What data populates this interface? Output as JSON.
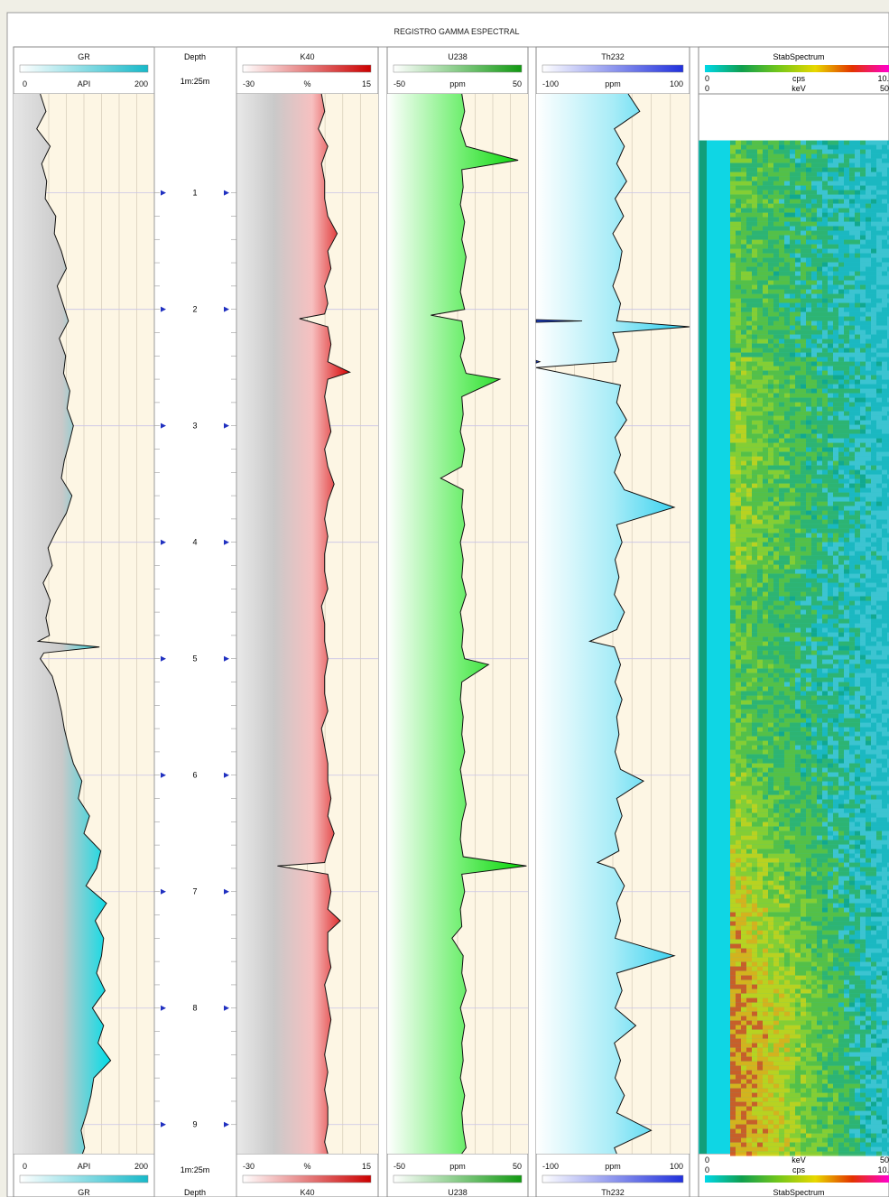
{
  "title": "REGISTRO GAMMA ESPECTRAL",
  "depth_track": {
    "header": "Depth",
    "scale": "1m:25m",
    "footer": "Depth",
    "ticks": [
      "1",
      "2",
      "3",
      "4",
      "5",
      "6",
      "7",
      "8",
      "9"
    ]
  },
  "colors": {
    "panel": "#fdf6e4",
    "grid": "#d9d0bb",
    "frame": "#8a8a8a",
    "curve": "#111111",
    "depth_marker": "#2030c0"
  },
  "chart_data": {
    "type": "line",
    "y_axis": {
      "label": "Depth",
      "range": [
        0.15,
        9.25
      ],
      "unit": "m",
      "orientation": "down"
    },
    "tracks": [
      {
        "id": "gr",
        "header": "GR",
        "footer": "GR",
        "unit": "API",
        "min": "0",
        "max": "200",
        "xlim": [
          0,
          200
        ],
        "scale_gradient": [
          "#ffffff",
          "#17b9c9"
        ],
        "fill_gradient": [
          "#e6e6e6",
          "#c9c9c9",
          "#00dde8"
        ],
        "depth": [
          0.15,
          0.3,
          0.45,
          0.6,
          0.75,
          0.9,
          1.05,
          1.2,
          1.35,
          1.5,
          1.65,
          1.8,
          1.95,
          2.1,
          2.25,
          2.4,
          2.55,
          2.7,
          2.85,
          3.0,
          3.15,
          3.3,
          3.45,
          3.6,
          3.75,
          3.9,
          4.05,
          4.2,
          4.35,
          4.5,
          4.65,
          4.8,
          4.85,
          4.9,
          4.95,
          5.0,
          5.15,
          5.3,
          5.45,
          5.6,
          5.75,
          5.9,
          6.05,
          6.2,
          6.35,
          6.5,
          6.65,
          6.8,
          6.95,
          7.1,
          7.25,
          7.4,
          7.55,
          7.7,
          7.85,
          8.0,
          8.15,
          8.3,
          8.45,
          8.6,
          8.75,
          8.9,
          9.05,
          9.2,
          9.25
        ],
        "value": [
          38,
          46,
          33,
          52,
          40,
          47,
          45,
          60,
          58,
          68,
          75,
          62,
          70,
          78,
          65,
          74,
          71,
          80,
          76,
          85,
          79,
          72,
          68,
          83,
          75,
          61,
          49,
          55,
          42,
          52,
          46,
          51,
          35,
          122,
          43,
          38,
          55,
          62,
          68,
          72,
          78,
          85,
          97,
          92,
          108,
          100,
          124,
          118,
          103,
          132,
          116,
          128,
          125,
          118,
          130,
          112,
          128,
          120,
          138,
          114,
          110,
          104,
          96,
          101,
          98
        ]
      },
      {
        "id": "k40",
        "header": "K40",
        "footer": "K40",
        "unit": "%",
        "min": "-30",
        "max": "15",
        "xlim": [
          -30,
          15
        ],
        "scale_gradient": [
          "#ffffff",
          "#cc0000"
        ],
        "fill_gradient": [
          "#e9e9e9",
          "#c9c9c9",
          "#f7c0c0",
          "#d80000"
        ],
        "depth": [
          0.15,
          0.3,
          0.45,
          0.6,
          0.75,
          0.9,
          1.05,
          1.2,
          1.35,
          1.5,
          1.65,
          1.8,
          1.95,
          2.04,
          2.08,
          2.15,
          2.3,
          2.45,
          2.54,
          2.6,
          2.75,
          2.9,
          3.05,
          3.2,
          3.35,
          3.5,
          3.65,
          3.8,
          3.95,
          4.1,
          4.25,
          4.4,
          4.55,
          4.7,
          4.85,
          5.0,
          5.15,
          5.3,
          5.45,
          5.6,
          5.75,
          5.9,
          6.05,
          6.2,
          6.35,
          6.5,
          6.65,
          6.75,
          6.78,
          6.85,
          7.0,
          7.15,
          7.25,
          7.35,
          7.5,
          7.65,
          7.8,
          7.95,
          8.1,
          8.25,
          8.4,
          8.55,
          8.7,
          8.85,
          9.0,
          9.15,
          9.25
        ],
        "value": [
          -3,
          -2,
          -4,
          -1,
          -3,
          -2,
          -2,
          -1,
          2,
          -1,
          0,
          -2,
          -1,
          -2,
          -10,
          -1,
          0,
          -1,
          6,
          -1,
          -2,
          -1,
          0,
          -2,
          -1,
          1,
          -1,
          -2,
          -1,
          -2,
          -2,
          -1,
          -3,
          -2,
          -2,
          -1,
          -2,
          -2,
          -1,
          -3,
          -2,
          -1,
          -1,
          0,
          -1,
          1,
          -1,
          -2,
          -17,
          -1,
          0,
          -1,
          3,
          -1,
          -1,
          0,
          -2,
          -1,
          0,
          -1,
          -2,
          -1,
          -2,
          -1,
          -1,
          -2,
          -1
        ]
      },
      {
        "id": "u238",
        "header": "U238",
        "footer": "U238",
        "unit": "ppm",
        "min": "-50",
        "max": "50",
        "xlim": [
          -50,
          50
        ],
        "scale_gradient": [
          "#ffffff",
          "#119911"
        ],
        "fill_gradient": [
          "#ffffff",
          "#7af07a",
          "#00d400"
        ],
        "depth": [
          0.15,
          0.3,
          0.45,
          0.6,
          0.72,
          0.8,
          0.95,
          1.1,
          1.25,
          1.4,
          1.55,
          1.7,
          1.85,
          2.0,
          2.05,
          2.1,
          2.25,
          2.4,
          2.55,
          2.6,
          2.75,
          2.9,
          3.05,
          3.2,
          3.35,
          3.45,
          3.55,
          3.7,
          3.85,
          4.0,
          4.15,
          4.3,
          4.45,
          4.6,
          4.75,
          4.9,
          5.0,
          5.05,
          5.2,
          5.35,
          5.5,
          5.65,
          5.8,
          5.95,
          6.1,
          6.25,
          6.4,
          6.55,
          6.7,
          6.78,
          6.85,
          7.0,
          7.15,
          7.3,
          7.4,
          7.55,
          7.7,
          7.85,
          8.0,
          8.15,
          8.3,
          8.45,
          8.6,
          8.75,
          8.9,
          9.05,
          9.2,
          9.25
        ],
        "value": [
          3,
          5,
          2,
          6,
          43,
          3,
          4,
          2,
          5,
          3,
          6,
          4,
          2,
          5,
          -19,
          3,
          5,
          2,
          6,
          30,
          3,
          4,
          2,
          5,
          3,
          -12,
          4,
          3,
          5,
          2,
          4,
          3,
          6,
          2,
          4,
          3,
          5,
          22,
          3,
          2,
          4,
          3,
          5,
          2,
          4,
          6,
          3,
          2,
          4,
          49,
          3,
          5,
          2,
          3,
          -4,
          4,
          3,
          6,
          2,
          5,
          3,
          4,
          2,
          5,
          3,
          4,
          6,
          3
        ]
      },
      {
        "id": "th232",
        "header": "Th232",
        "footer": "Th232",
        "unit": "ppm",
        "min": "-100",
        "max": "100",
        "xlim": [
          -100,
          100
        ],
        "scale_gradient": [
          "#ffffff",
          "#2030dd"
        ],
        "fill_gradient": [
          "#ffffff",
          "#a8ecf7",
          "#22ccee"
        ],
        "depth": [
          0.15,
          0.3,
          0.45,
          0.6,
          0.75,
          0.9,
          1.05,
          1.2,
          1.35,
          1.5,
          1.65,
          1.8,
          1.95,
          2.1,
          2.15,
          2.2,
          2.35,
          2.45,
          2.5,
          2.65,
          2.8,
          2.95,
          3.1,
          3.25,
          3.4,
          3.55,
          3.7,
          3.85,
          4.0,
          4.15,
          4.3,
          4.45,
          4.6,
          4.75,
          4.85,
          4.9,
          5.05,
          5.2,
          5.35,
          5.5,
          5.65,
          5.8,
          5.95,
          6.05,
          6.2,
          6.35,
          6.5,
          6.65,
          6.75,
          6.8,
          6.95,
          7.1,
          7.25,
          7.4,
          7.55,
          7.7,
          7.85,
          8.0,
          8.15,
          8.3,
          8.45,
          8.6,
          8.75,
          8.9,
          9.05,
          9.2,
          9.25
        ],
        "value": [
          20,
          35,
          2,
          15,
          5,
          18,
          3,
          14,
          0,
          12,
          8,
          0,
          10,
          5,
          100,
          0,
          8,
          4,
          -100,
          10,
          5,
          18,
          3,
          10,
          2,
          15,
          80,
          5,
          12,
          3,
          8,
          2,
          15,
          5,
          -30,
          2,
          10,
          3,
          12,
          5,
          8,
          3,
          10,
          40,
          5,
          12,
          3,
          8,
          -20,
          2,
          15,
          5,
          10,
          3,
          80,
          5,
          12,
          3,
          30,
          2,
          10,
          3,
          15,
          5,
          50,
          2,
          5
        ],
        "outliers": [
          {
            "depth": 2.1,
            "value": -40
          },
          {
            "depth": 2.45,
            "value": -95
          }
        ]
      }
    ],
    "spectrum": {
      "header": "StabSpectrum",
      "footer": "StabSpectrum",
      "top_rows": [
        {
          "min": "0",
          "unit": "cps",
          "max": "10."
        },
        {
          "min": "0",
          "unit": "keV",
          "max": "50"
        }
      ],
      "bottom_rows": [
        {
          "min": "0",
          "unit": "keV",
          "max": "50"
        },
        {
          "min": "0",
          "unit": "cps",
          "max": "10."
        }
      ],
      "color_scale": [
        "#00d8e8",
        "#0f9f4f",
        "#74c71a",
        "#e8d800",
        "#e33300",
        "#ff00cc"
      ],
      "data_start_depth": 0.55
    }
  }
}
